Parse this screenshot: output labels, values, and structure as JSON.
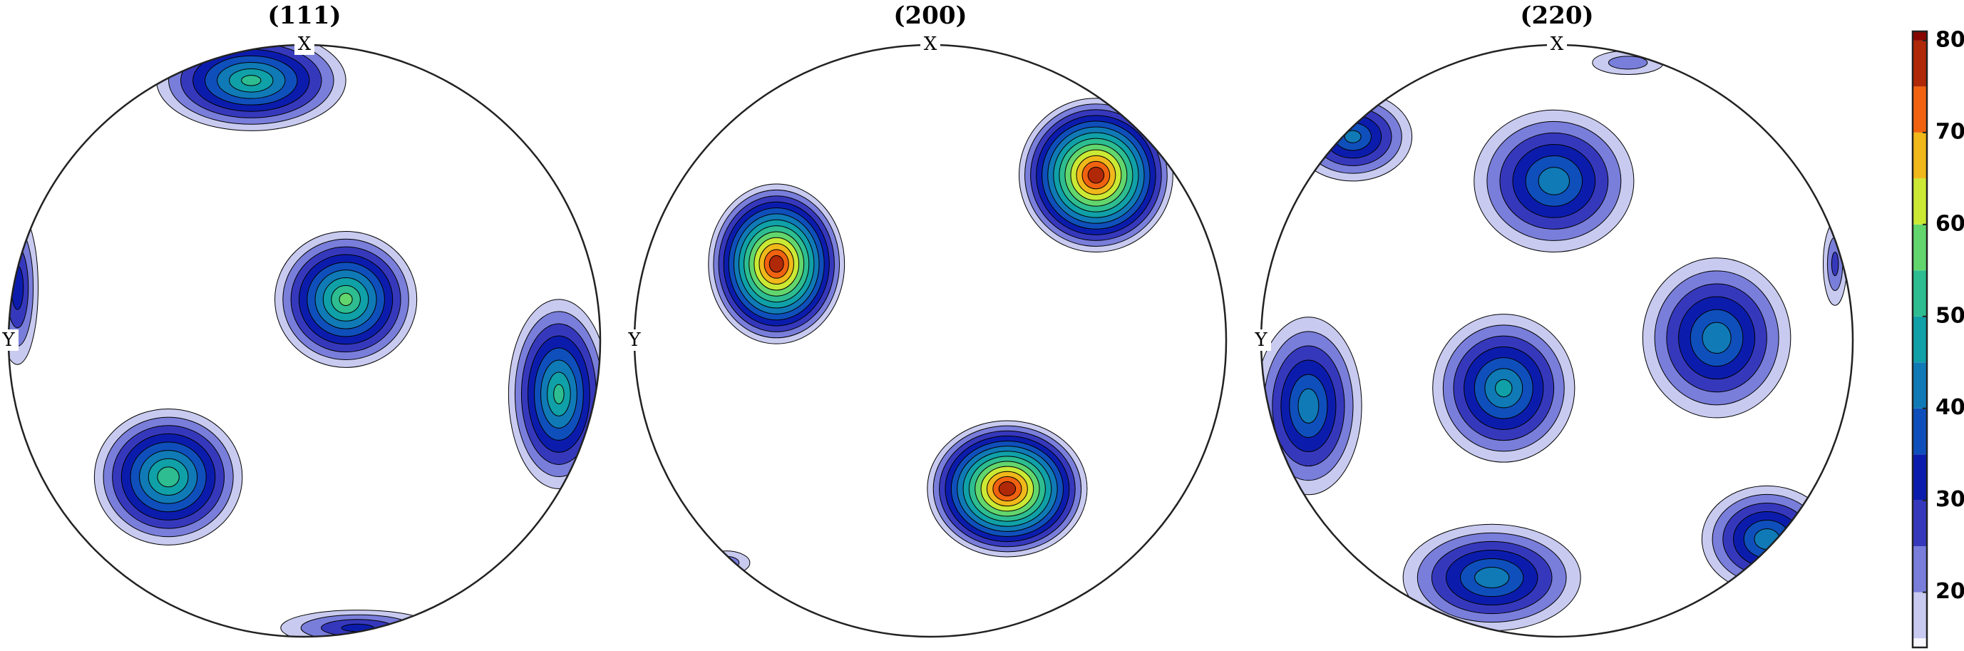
{
  "chart_data": {
    "type": "pole-figure",
    "x_label": "X",
    "y_label": "Y",
    "clim": [
      14,
      81
    ],
    "cticks": [
      20,
      30,
      40,
      50,
      60,
      70,
      80
    ],
    "levels": [
      15,
      20,
      25,
      30,
      35,
      40,
      45,
      50,
      55,
      60,
      65,
      70,
      75,
      80
    ],
    "colormap": [
      "#ffffff",
      "#7b80dc",
      "#0a0aa8",
      "#1060c0",
      "#10a0a8",
      "#40d080",
      "#f0f020",
      "#f06010",
      "#800000"
    ],
    "panels": [
      {
        "title": "(111)",
        "peaks": [
          {
            "x": -0.18,
            "y": 0.88,
            "rx": 0.32,
            "ry": 0.17,
            "max": 50
          },
          {
            "x": 0.14,
            "y": 0.14,
            "rx": 0.24,
            "ry": 0.23,
            "max": 55
          },
          {
            "x": 0.86,
            "y": -0.18,
            "rx": 0.17,
            "ry": 0.32,
            "max": 50
          },
          {
            "x": -0.46,
            "y": -0.46,
            "rx": 0.25,
            "ry": 0.23,
            "max": 52
          },
          {
            "x": -0.97,
            "y": 0.18,
            "rx": 0.07,
            "ry": 0.26,
            "max": 32
          },
          {
            "x": 0.18,
            "y": -0.97,
            "rx": 0.26,
            "ry": 0.06,
            "max": 30
          }
        ]
      },
      {
        "title": "(200)",
        "peaks": [
          {
            "x": 0.56,
            "y": 0.56,
            "rx": 0.26,
            "ry": 0.26,
            "max": 78
          },
          {
            "x": -0.52,
            "y": 0.26,
            "rx": 0.23,
            "ry": 0.27,
            "max": 78
          },
          {
            "x": 0.26,
            "y": -0.5,
            "rx": 0.27,
            "ry": 0.23,
            "max": 78
          },
          {
            "x": -0.69,
            "y": -0.75,
            "rx": 0.08,
            "ry": 0.04,
            "max": 22
          }
        ]
      },
      {
        "title": "(220)",
        "peaks": [
          {
            "x": -0.01,
            "y": 0.54,
            "rx": 0.27,
            "ry": 0.24,
            "max": 42
          },
          {
            "x": 0.54,
            "y": 0.01,
            "rx": 0.25,
            "ry": 0.27,
            "max": 42
          },
          {
            "x": -0.18,
            "y": -0.16,
            "rx": 0.24,
            "ry": 0.25,
            "max": 45
          },
          {
            "x": -0.84,
            "y": -0.22,
            "rx": 0.18,
            "ry": 0.3,
            "max": 42
          },
          {
            "x": -0.22,
            "y": -0.8,
            "rx": 0.3,
            "ry": 0.18,
            "max": 42
          },
          {
            "x": 0.71,
            "y": -0.67,
            "rx": 0.22,
            "ry": 0.18,
            "max": 42
          },
          {
            "x": -0.69,
            "y": 0.69,
            "rx": 0.2,
            "ry": 0.15,
            "max": 40
          },
          {
            "x": 0.24,
            "y": 0.94,
            "rx": 0.12,
            "ry": 0.04,
            "max": 22
          },
          {
            "x": 0.94,
            "y": 0.26,
            "rx": 0.04,
            "ry": 0.14,
            "max": 25
          }
        ]
      }
    ]
  }
}
